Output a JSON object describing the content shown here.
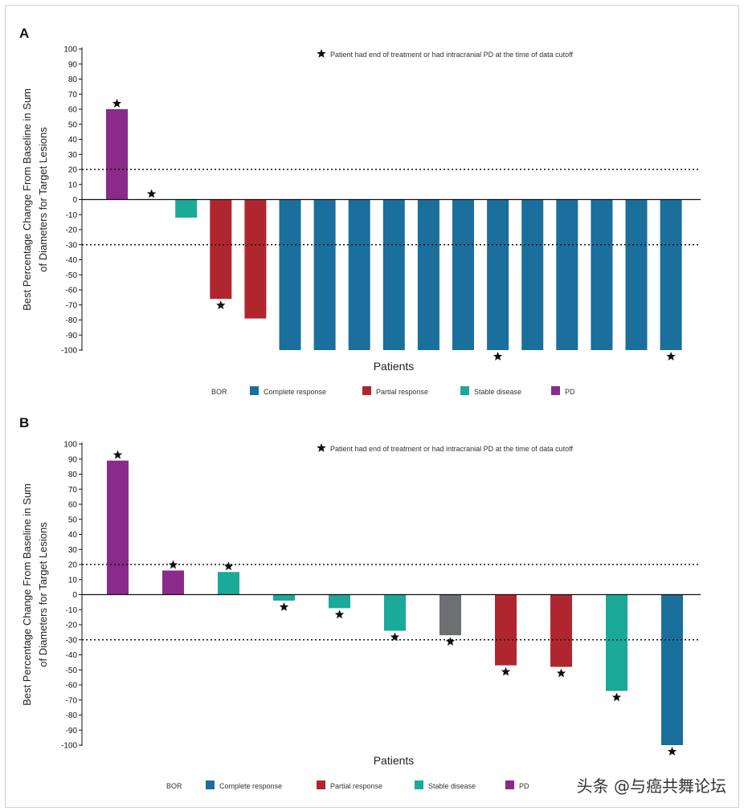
{
  "watermark": "头条 @与癌共舞论坛",
  "colors": {
    "complete": "#1a6f9c",
    "partial": "#b0262f",
    "stable": "#1ba99a",
    "pd": "#8a2a8a",
    "other": "#6d6f72"
  },
  "chart_data": [
    {
      "panel_label": "A",
      "type": "bar",
      "ylabel_line1": "Best Percentage Change From Baseline in Sum",
      "ylabel_line2": "of Diameters for Target Lesions",
      "xlabel": "Patients",
      "ylim": [
        -100,
        100
      ],
      "ticks": [
        100,
        90,
        80,
        70,
        60,
        50,
        40,
        30,
        20,
        10,
        0,
        -10,
        -20,
        -30,
        -40,
        -50,
        -60,
        -70,
        -80,
        -90,
        -100
      ],
      "reference_lines": [
        20,
        -30
      ],
      "annotation": "Patient had end of treatment or had intracranial PD at the time of data cutoff",
      "values": [
        60,
        0,
        -12,
        -66,
        -79,
        -100,
        -100,
        -100,
        -100,
        -100,
        -100,
        -100,
        -100,
        -100,
        -100,
        -100,
        -100
      ],
      "response": [
        "pd",
        "pd",
        "stable",
        "partial",
        "partial",
        "complete",
        "complete",
        "complete",
        "complete",
        "complete",
        "complete",
        "complete",
        "complete",
        "complete",
        "complete",
        "complete",
        "complete"
      ],
      "starred": [
        true,
        true,
        false,
        true,
        false,
        false,
        false,
        false,
        false,
        false,
        false,
        true,
        false,
        false,
        false,
        false,
        true
      ],
      "legend_title": "BOR",
      "legend": [
        {
          "key": "complete",
          "label": "Complete response"
        },
        {
          "key": "partial",
          "label": "Partial response"
        },
        {
          "key": "stable",
          "label": "Stable disease"
        },
        {
          "key": "pd",
          "label": "PD"
        }
      ]
    },
    {
      "panel_label": "B",
      "type": "bar",
      "ylabel_line1": "Best Percentage Change From Baseline in Sum",
      "ylabel_line2": "of Diameters for Target Lesions",
      "xlabel": "Patients",
      "ylim": [
        -100,
        100
      ],
      "ticks": [
        100,
        90,
        80,
        70,
        60,
        50,
        40,
        30,
        20,
        10,
        0,
        -10,
        -20,
        -30,
        -40,
        -50,
        -60,
        -70,
        -80,
        -90,
        -100
      ],
      "reference_lines": [
        20,
        -30
      ],
      "annotation": "Patient had end of treatment or had intracranial PD at the time of data cutoff",
      "values": [
        89,
        16,
        15,
        -4,
        -9,
        -24,
        -27,
        -47,
        -48,
        -64,
        -100
      ],
      "response": [
        "pd",
        "pd",
        "stable",
        "stable",
        "stable",
        "stable",
        "other",
        "partial",
        "partial",
        "stable",
        "complete"
      ],
      "starred": [
        true,
        true,
        true,
        true,
        true,
        true,
        true,
        true,
        true,
        true,
        true
      ],
      "legend_title": "BOR",
      "legend": [
        {
          "key": "complete",
          "label": "Complete response"
        },
        {
          "key": "partial",
          "label": "Partial response"
        },
        {
          "key": "stable",
          "label": "Stable disease"
        },
        {
          "key": "pd",
          "label": "PD"
        }
      ]
    }
  ]
}
